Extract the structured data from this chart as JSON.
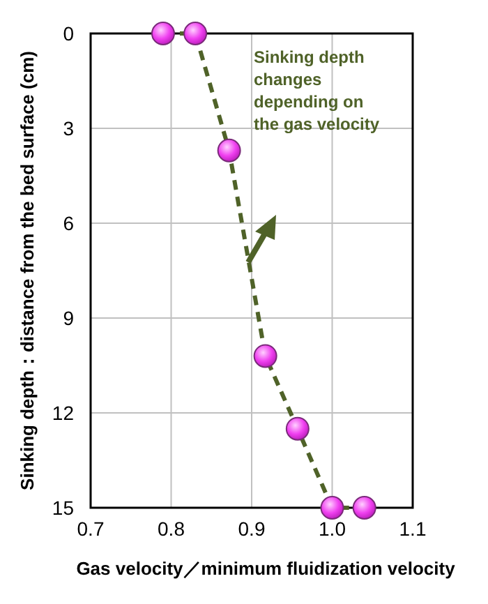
{
  "chart_data": {
    "type": "line",
    "xlabel": "Gas velocity／minimum fluidization velocity",
    "ylabel": "Sinking depth：distance from the bed surface (cm)",
    "x": [
      0.79,
      0.83,
      0.872,
      0.917,
      0.957,
      1.0,
      1.04
    ],
    "series": [
      {
        "color": "#4f6228",
        "values": [
          0,
          0,
          3.7,
          10.2,
          12.5,
          15,
          15
        ]
      }
    ],
    "xlim": [
      0.7,
      1.1
    ],
    "xticks": [
      {
        "value": 0.7,
        "label": "0.7"
      },
      {
        "value": 0.8,
        "label": "0.8"
      },
      {
        "value": 0.9,
        "label": "0.9"
      },
      {
        "value": 1.0,
        "label": "1.0"
      },
      {
        "value": 1.1,
        "label": "1.1"
      }
    ],
    "ylim": [
      15,
      0
    ],
    "yticks": [
      0,
      3,
      6,
      9,
      12,
      15
    ],
    "grid": true,
    "marker": "circle",
    "line_style": "dashed",
    "annotations": [
      "Sinking depth\nchanges\ndepending on\nthe gas velocity"
    ]
  }
}
